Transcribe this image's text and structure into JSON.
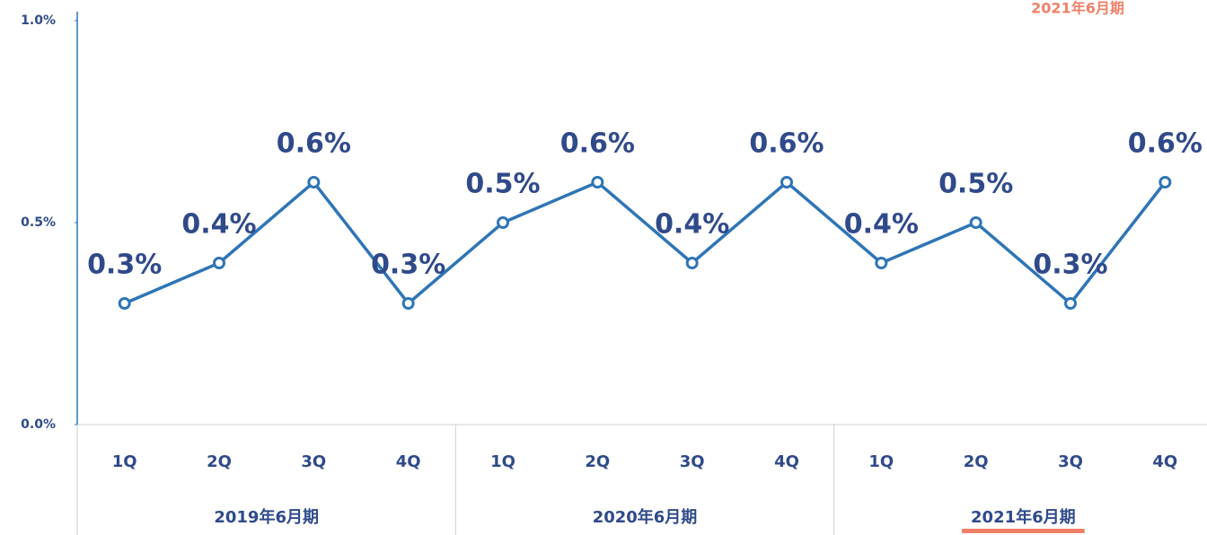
{
  "chart_data": {
    "type": "line",
    "annotation": "2021年6月期",
    "categories": [
      "1Q",
      "2Q",
      "3Q",
      "4Q",
      "1Q",
      "2Q",
      "3Q",
      "4Q",
      "1Q",
      "2Q",
      "3Q",
      "4Q"
    ],
    "groups": [
      "2019年6月期",
      "2020年6月期",
      "2021年6月期"
    ],
    "series": [
      {
        "color": "#2e75b6",
        "values": [
          0.3,
          0.4,
          0.6,
          0.3,
          0.5,
          0.6,
          0.4,
          0.6,
          0.4,
          0.5,
          0.3,
          0.6
        ],
        "value_labels": [
          "0.3%",
          "0.4%",
          "0.6%",
          "0.3%",
          "0.5%",
          "0.6%",
          "0.4%",
          "0.6%",
          "0.4%",
          "0.5%",
          "0.3%",
          "0.6%"
        ]
      }
    ],
    "ylim": [
      0,
      1.0
    ],
    "yticks": [
      {
        "value": 0,
        "label": "0.0%"
      },
      {
        "value": 0.5,
        "label": "0.5%"
      },
      {
        "value": 1.0,
        "label": "1.0%"
      }
    ],
    "highlight_color": "#ef8068"
  }
}
